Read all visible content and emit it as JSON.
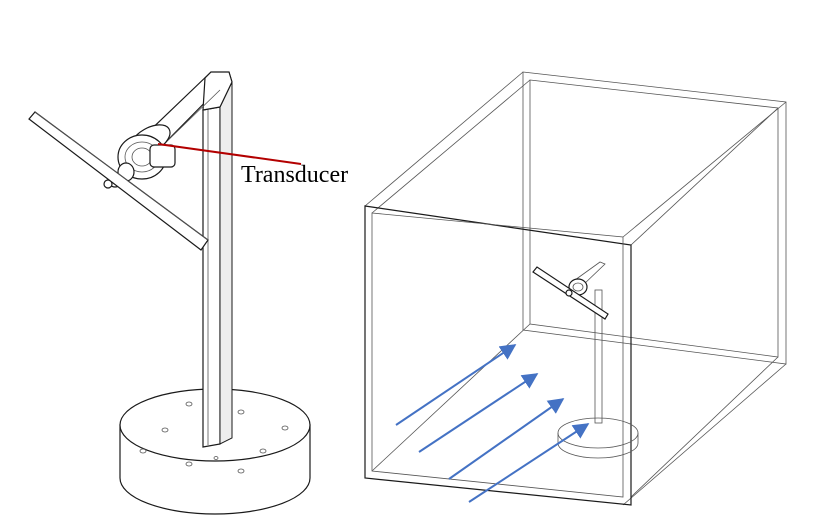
{
  "figure": {
    "transducer_label": "Transducer"
  },
  "colors": {
    "leader_line": "#b30000",
    "flow_arrow": "#4472c4",
    "line": "#1a1a1a",
    "box_edge": "#333333"
  },
  "icons": [
    "arrow-icon"
  ]
}
